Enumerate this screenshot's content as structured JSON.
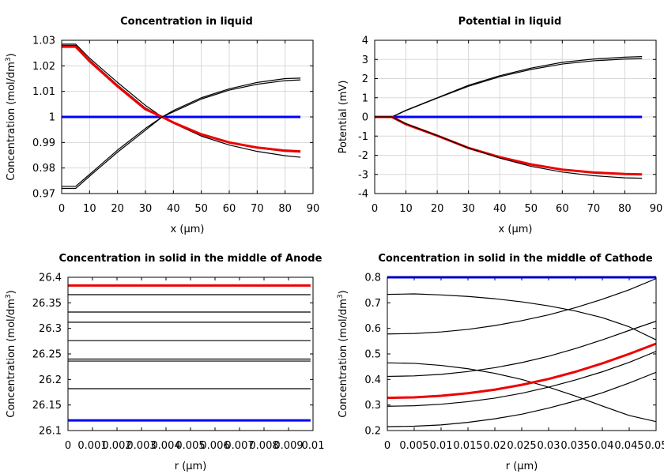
{
  "chart_data": [
    {
      "type": "line",
      "title": "Concentration in liquid",
      "xlabel": "x (µm)",
      "ylabel": "Concentration (mol/dm",
      "ylabel_sup": "3",
      "ylabel_tail": ")",
      "xlim": [
        0,
        90
      ],
      "ylim": [
        0.97,
        1.03
      ],
      "xticks": [
        0,
        10,
        20,
        30,
        40,
        50,
        60,
        70,
        80,
        90
      ],
      "xtick_labels": [
        "0",
        "10",
        "20",
        "30",
        "40",
        "50",
        "60",
        "70",
        "80",
        "90"
      ],
      "yticks": [
        0.97,
        0.98,
        0.99,
        1.0,
        1.01,
        1.02,
        1.03
      ],
      "ytick_labels": [
        "0.97",
        "0.98",
        "0.99",
        "1",
        "1.01",
        "1.02",
        "1.03"
      ],
      "grid": true,
      "series": [
        {
          "name": "initial",
          "color": "#0000ff",
          "width": 3,
          "x": [
            0,
            85.5
          ],
          "y": [
            1.0,
            1.0
          ]
        },
        {
          "name": "upper-a",
          "color": "#000000",
          "width": 1.2,
          "x": [
            0,
            5,
            10,
            20,
            30,
            36,
            40,
            50,
            60,
            70,
            80,
            85.5
          ],
          "y": [
            1.0285,
            1.0285,
            1.023,
            1.0135,
            1.0045,
            1.0,
            0.9975,
            0.9925,
            0.989,
            0.9865,
            0.9848,
            0.9842
          ]
        },
        {
          "name": "upper-b",
          "color": "#000000",
          "width": 1.2,
          "x": [
            0,
            5,
            10,
            20,
            30,
            36,
            40,
            50,
            60,
            70,
            80,
            85.5
          ],
          "y": [
            1.028,
            1.028,
            1.0223,
            1.0125,
            1.0035,
            1.0,
            0.9978,
            0.993,
            0.9898,
            0.9878,
            0.9865,
            0.9862
          ]
        },
        {
          "name": "red-current",
          "color": "#ee0000",
          "width": 3,
          "x": [
            0,
            5,
            10,
            20,
            30,
            36,
            40,
            50,
            60,
            70,
            80,
            85.5
          ],
          "y": [
            1.0275,
            1.0275,
            1.0218,
            1.012,
            1.003,
            1.0,
            0.9978,
            0.9932,
            0.99,
            0.988,
            0.9868,
            0.9865
          ]
        },
        {
          "name": "lower-a",
          "color": "#000000",
          "width": 1.2,
          "x": [
            0,
            5,
            10,
            20,
            30,
            36,
            40,
            50,
            60,
            70,
            80,
            85.5
          ],
          "y": [
            0.9728,
            0.9728,
            0.9775,
            0.987,
            0.9955,
            1.0,
            1.0025,
            1.0075,
            1.011,
            1.0135,
            1.015,
            1.0152
          ]
        },
        {
          "name": "lower-b",
          "color": "#000000",
          "width": 1.2,
          "x": [
            0,
            5,
            10,
            20,
            30,
            36,
            40,
            50,
            60,
            70,
            80,
            85.5
          ],
          "y": [
            0.972,
            0.972,
            0.9768,
            0.9862,
            0.9948,
            1.0,
            1.002,
            1.007,
            1.0105,
            1.0128,
            1.0142,
            1.0145
          ]
        }
      ]
    },
    {
      "type": "line",
      "title": "Potential in liquid",
      "xlabel": "x (µm)",
      "ylabel": "Potential (mV)",
      "ylabel_sup": "",
      "ylabel_tail": "",
      "xlim": [
        0,
        90
      ],
      "ylim": [
        -4,
        4
      ],
      "xticks": [
        0,
        10,
        20,
        30,
        40,
        50,
        60,
        70,
        80,
        90
      ],
      "xtick_labels": [
        "0",
        "10",
        "20",
        "30",
        "40",
        "50",
        "60",
        "70",
        "80",
        "90"
      ],
      "yticks": [
        -4,
        -3,
        -2,
        -1,
        0,
        1,
        2,
        3,
        4
      ],
      "ytick_labels": [
        "-4",
        "-3",
        "-2",
        "-1",
        "0",
        "1",
        "2",
        "3",
        "4"
      ],
      "grid": true,
      "series": [
        {
          "name": "initial",
          "color": "#0000ff",
          "width": 3,
          "x": [
            0,
            85.5
          ],
          "y": [
            0,
            0
          ]
        },
        {
          "name": "upper-a",
          "color": "#000000",
          "width": 1.2,
          "x": [
            0,
            5.5,
            10,
            20,
            30,
            40,
            50,
            60,
            70,
            80,
            85.5
          ],
          "y": [
            0,
            0,
            0.35,
            1.0,
            1.65,
            2.15,
            2.55,
            2.85,
            3.02,
            3.12,
            3.15
          ]
        },
        {
          "name": "upper-b",
          "color": "#000000",
          "width": 1.2,
          "x": [
            0,
            5.5,
            10,
            20,
            30,
            40,
            50,
            60,
            70,
            80,
            85.5
          ],
          "y": [
            0,
            0,
            0.33,
            0.98,
            1.6,
            2.1,
            2.48,
            2.76,
            2.93,
            3.02,
            3.04
          ]
        },
        {
          "name": "red-current",
          "color": "#ee0000",
          "width": 3,
          "x": [
            0,
            5.5,
            10,
            20,
            30,
            40,
            50,
            60,
            70,
            80,
            85.5
          ],
          "y": [
            0,
            0,
            -0.38,
            -0.98,
            -1.62,
            -2.1,
            -2.48,
            -2.75,
            -2.9,
            -2.98,
            -3.0
          ]
        },
        {
          "name": "lower-a",
          "color": "#000000",
          "width": 1.2,
          "x": [
            0,
            5.5,
            10,
            20,
            30,
            40,
            50,
            60,
            70,
            80,
            85.5
          ],
          "y": [
            0,
            0,
            -0.36,
            -0.97,
            -1.62,
            -2.15,
            -2.58,
            -2.88,
            -3.07,
            -3.18,
            -3.2
          ]
        }
      ]
    },
    {
      "type": "line",
      "title": "Concentration in solid in the middle of Anode",
      "xlabel": "r (µm)",
      "ylabel": "Concentration (mol/dm",
      "ylabel_sup": "3",
      "ylabel_tail": ")",
      "xlim": [
        0,
        0.01
      ],
      "ylim": [
        26.1,
        26.4
      ],
      "xticks": [
        0,
        0.001,
        0.002,
        0.003,
        0.004,
        0.005,
        0.006,
        0.007,
        0.008,
        0.009,
        0.01
      ],
      "xtick_labels": [
        "0",
        "0.001",
        "0.002",
        "0.003",
        "0.004",
        "0.005",
        "0.006",
        "0.007",
        "0.008",
        "0.009",
        "0.01"
      ],
      "yticks": [
        26.1,
        26.15,
        26.2,
        26.25,
        26.3,
        26.35,
        26.4
      ],
      "ytick_labels": [
        "26.1",
        "26.15",
        "26.2",
        "26.25",
        "26.3",
        "26.35",
        "26.4"
      ],
      "grid": false,
      "series": [
        {
          "name": "line-1",
          "color": "#000000",
          "width": 1.2,
          "x": [
            0,
            0.0099
          ],
          "y": [
            26.366,
            26.366
          ]
        },
        {
          "name": "line-2",
          "color": "#000000",
          "width": 1.2,
          "x": [
            0,
            0.0099
          ],
          "y": [
            26.332,
            26.332
          ]
        },
        {
          "name": "line-3",
          "color": "#000000",
          "width": 1.2,
          "x": [
            0,
            0.0099
          ],
          "y": [
            26.312,
            26.312
          ]
        },
        {
          "name": "line-4",
          "color": "#000000",
          "width": 1.2,
          "x": [
            0,
            0.0099
          ],
          "y": [
            26.276,
            26.276
          ]
        },
        {
          "name": "line-5",
          "color": "#000000",
          "width": 1.2,
          "x": [
            0,
            0.0099
          ],
          "y": [
            26.24,
            26.24
          ]
        },
        {
          "name": "line-6",
          "color": "#000000",
          "width": 1.2,
          "x": [
            0,
            0.0099
          ],
          "y": [
            26.236,
            26.236
          ]
        },
        {
          "name": "line-7",
          "color": "#000000",
          "width": 1.2,
          "x": [
            0,
            0.0099
          ],
          "y": [
            26.182,
            26.182
          ]
        },
        {
          "name": "red-current",
          "color": "#ee0000",
          "width": 3,
          "x": [
            0,
            0.0099
          ],
          "y": [
            26.384,
            26.384
          ]
        },
        {
          "name": "initial",
          "color": "#0000ff",
          "width": 3,
          "x": [
            0,
            0.0099
          ],
          "y": [
            26.12,
            26.12
          ]
        }
      ]
    },
    {
      "type": "line",
      "title": "Concentration in solid in the middle of Cathode",
      "xlabel": "r (µm)",
      "ylabel": "Concentration (mol/dm",
      "ylabel_sup": "3",
      "ylabel_tail": ")",
      "xlim": [
        0,
        0.05
      ],
      "ylim": [
        0.2,
        0.8
      ],
      "xticks": [
        0,
        0.005,
        0.01,
        0.015,
        0.02,
        0.025,
        0.03,
        0.035,
        0.04,
        0.045,
        0.05
      ],
      "xtick_labels": [
        "0",
        "0.005",
        "0.01",
        "0.015",
        "0.02",
        "0.025",
        "0.03",
        "0.035",
        "0.04",
        "0.045",
        "0.05"
      ],
      "yticks": [
        0.2,
        0.3,
        0.4,
        0.5,
        0.6,
        0.7,
        0.8
      ],
      "ytick_labels": [
        "0.2",
        "0.3",
        "0.4",
        "0.5",
        "0.6",
        "0.7",
        "0.8"
      ],
      "grid": false,
      "series": [
        {
          "name": "initial",
          "color": "#0000ff",
          "width": 3,
          "x": [
            0,
            0.05
          ],
          "y": [
            0.8,
            0.8
          ]
        },
        {
          "name": "decr-1",
          "color": "#000000",
          "width": 1.2,
          "x": [
            0,
            0.005,
            0.01,
            0.015,
            0.02,
            0.025,
            0.03,
            0.035,
            0.04,
            0.045,
            0.05
          ],
          "y": [
            0.733,
            0.735,
            0.731,
            0.725,
            0.716,
            0.704,
            0.688,
            0.668,
            0.642,
            0.606,
            0.555
          ]
        },
        {
          "name": "decr-2",
          "color": "#000000",
          "width": 1.2,
          "x": [
            0,
            0.005,
            0.01,
            0.015,
            0.02,
            0.025,
            0.03,
            0.035,
            0.04,
            0.045,
            0.05
          ],
          "y": [
            0.465,
            0.463,
            0.455,
            0.442,
            0.424,
            0.4,
            0.37,
            0.335,
            0.296,
            0.259,
            0.235
          ]
        },
        {
          "name": "incr-1",
          "color": "#000000",
          "width": 1.2,
          "x": [
            0,
            0.005,
            0.01,
            0.015,
            0.02,
            0.025,
            0.03,
            0.035,
            0.04,
            0.045,
            0.05
          ],
          "y": [
            0.578,
            0.58,
            0.586,
            0.596,
            0.611,
            0.63,
            0.653,
            0.681,
            0.714,
            0.751,
            0.795
          ]
        },
        {
          "name": "incr-2",
          "color": "#000000",
          "width": 1.2,
          "x": [
            0,
            0.005,
            0.01,
            0.015,
            0.02,
            0.025,
            0.03,
            0.035,
            0.04,
            0.045,
            0.05
          ],
          "y": [
            0.412,
            0.414,
            0.42,
            0.431,
            0.446,
            0.466,
            0.491,
            0.521,
            0.555,
            0.592,
            0.628
          ]
        },
        {
          "name": "red-current",
          "color": "#ee0000",
          "width": 3,
          "x": [
            0,
            0.005,
            0.01,
            0.015,
            0.02,
            0.025,
            0.03,
            0.035,
            0.04,
            0.045,
            0.05
          ],
          "y": [
            0.328,
            0.33,
            0.336,
            0.346,
            0.36,
            0.379,
            0.402,
            0.43,
            0.463,
            0.5,
            0.54
          ]
        },
        {
          "name": "incr-3",
          "color": "#000000",
          "width": 1.2,
          "x": [
            0,
            0.005,
            0.01,
            0.015,
            0.02,
            0.025,
            0.03,
            0.035,
            0.04,
            0.045,
            0.05
          ],
          "y": [
            0.295,
            0.297,
            0.303,
            0.313,
            0.327,
            0.346,
            0.37,
            0.398,
            0.43,
            0.467,
            0.51
          ]
        },
        {
          "name": "incr-4",
          "color": "#000000",
          "width": 1.2,
          "x": [
            0,
            0.005,
            0.01,
            0.015,
            0.02,
            0.025,
            0.03,
            0.035,
            0.04,
            0.045,
            0.05
          ],
          "y": [
            0.215,
            0.217,
            0.222,
            0.232,
            0.246,
            0.264,
            0.288,
            0.316,
            0.348,
            0.386,
            0.428
          ]
        }
      ]
    }
  ]
}
